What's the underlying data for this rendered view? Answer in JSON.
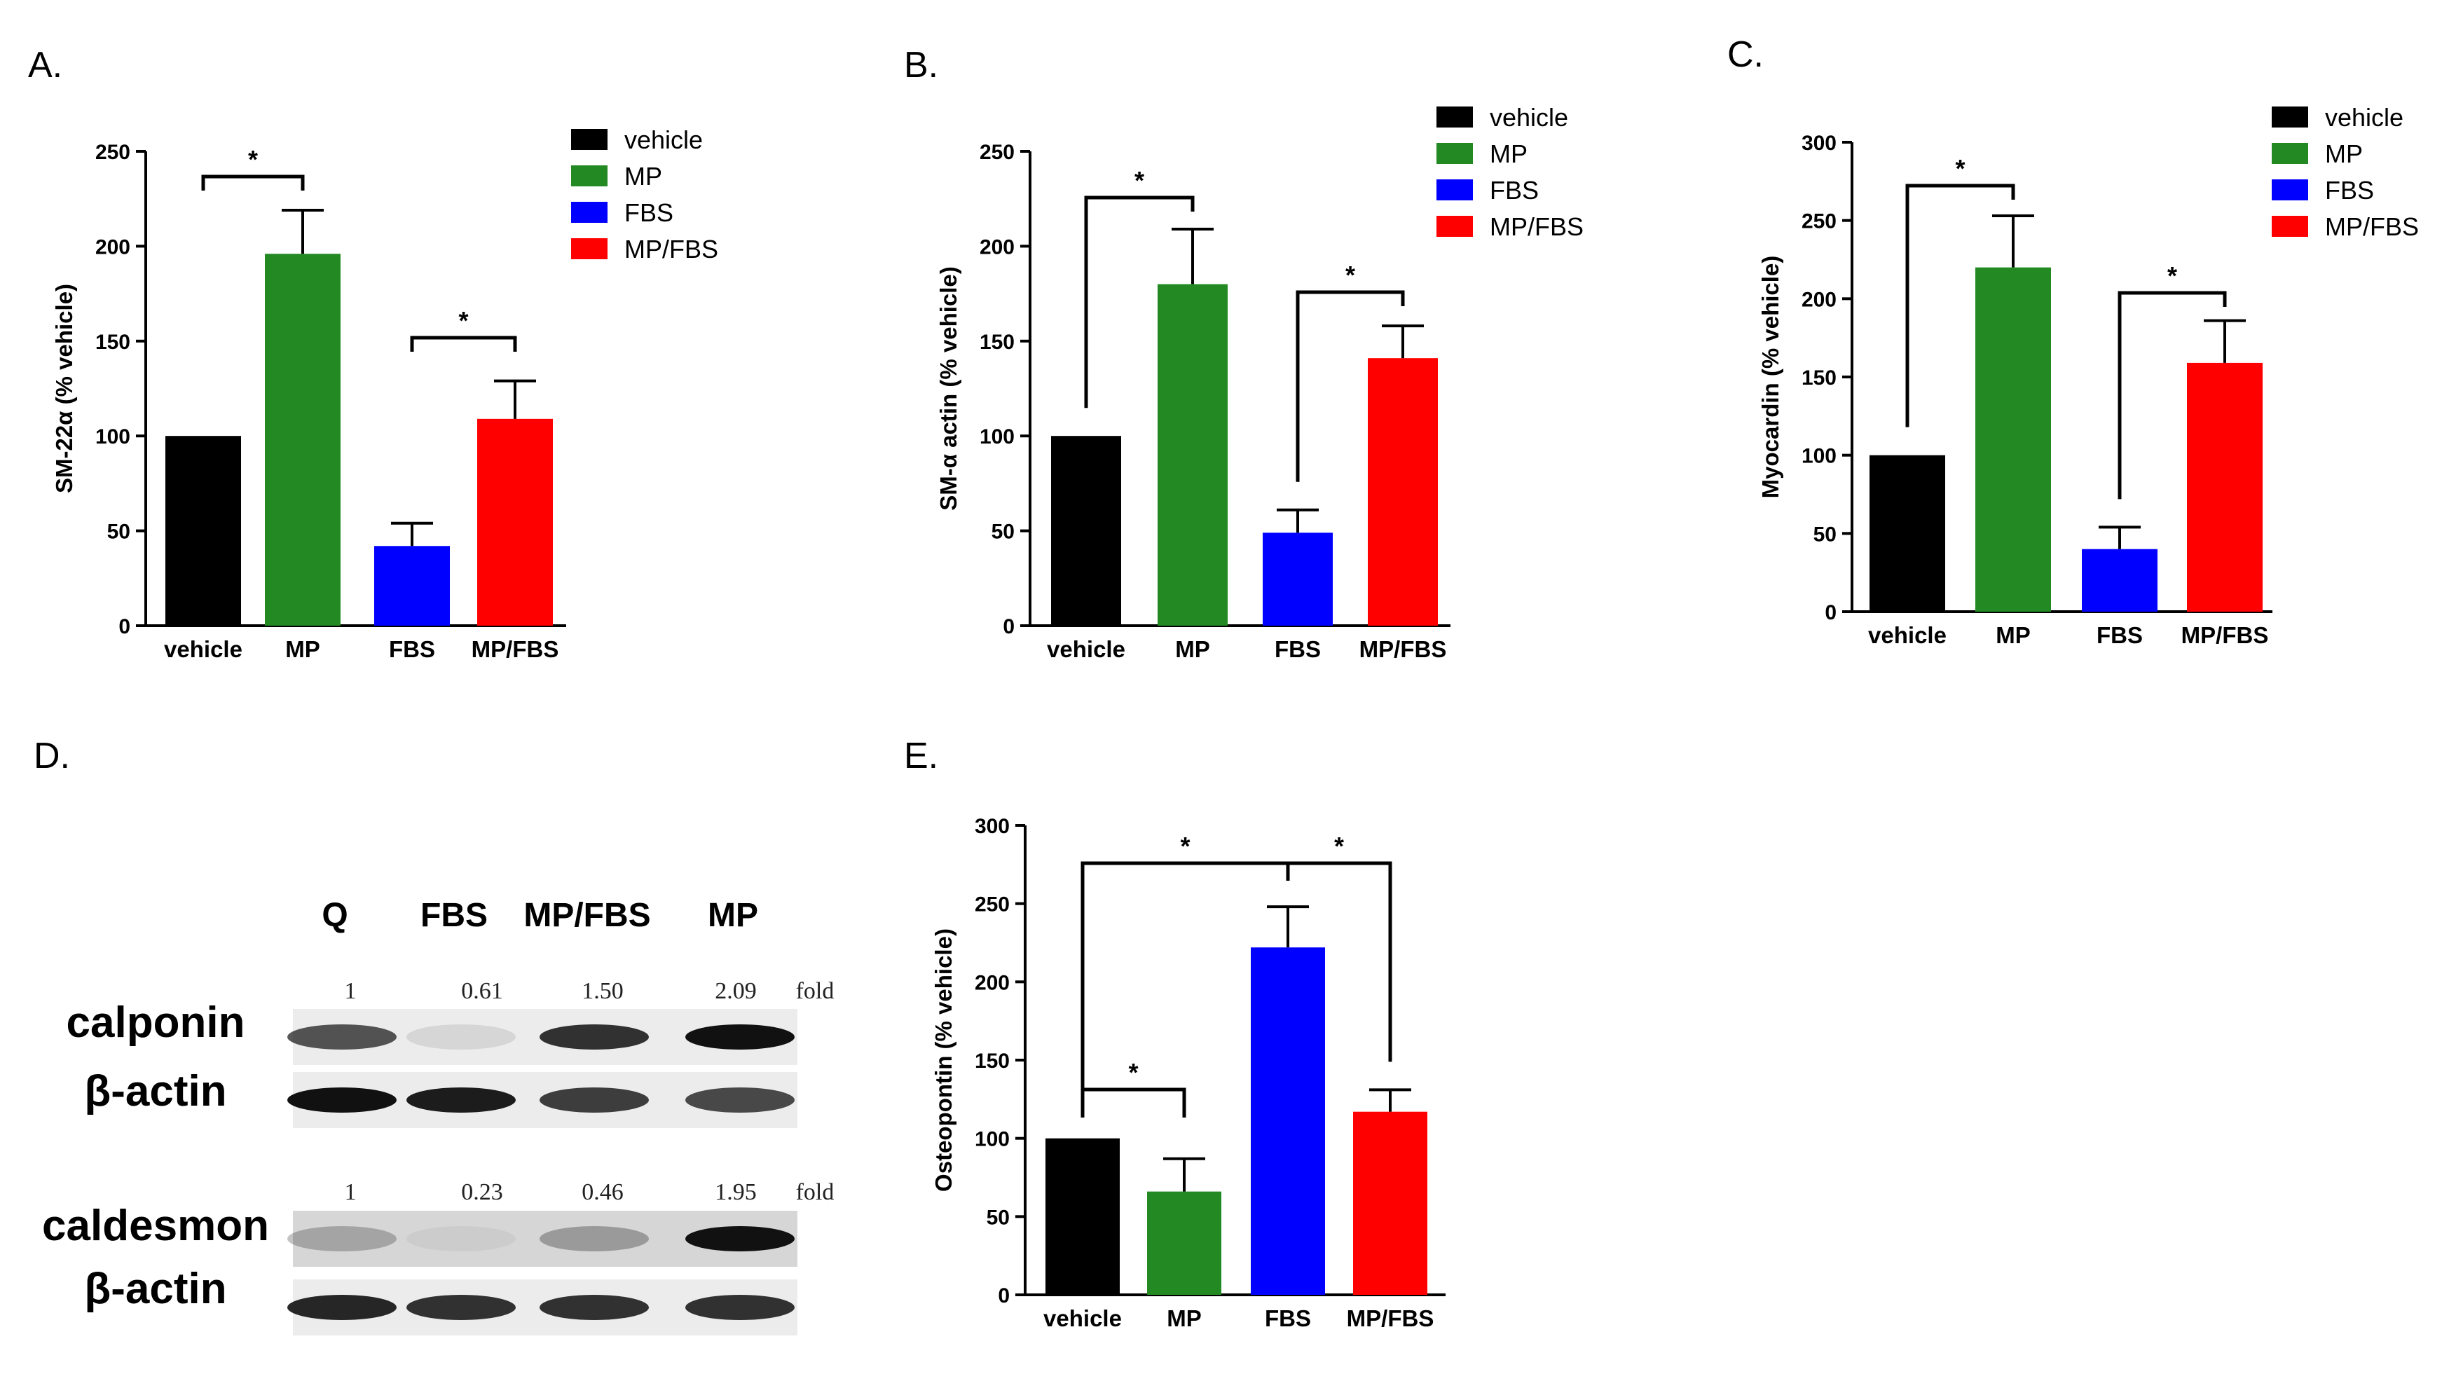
{
  "panels": [
    {
      "label": "A."
    },
    {
      "label": "B."
    },
    {
      "label": "C."
    },
    {
      "label": "D."
    },
    {
      "label": "E."
    }
  ],
  "chart_data": [
    {
      "panel": "A.",
      "type": "bar",
      "ylabel": "SM-22α (% vehicle)",
      "categories": [
        "vehicle",
        "MP",
        "FBS",
        "MP/FBS"
      ],
      "values": [
        100,
        196,
        42,
        109
      ],
      "errors": [
        0,
        23,
        12,
        20
      ],
      "colors": [
        "#000000",
        "#238a23",
        "#0000ff",
        "#ff0000"
      ],
      "ylim": [
        0,
        250
      ],
      "yticks": [
        0,
        50,
        100,
        150,
        200,
        250
      ],
      "legend": [
        "vehicle",
        "MP",
        "FBS",
        "MP/FBS"
      ],
      "significance": [
        {
          "from": 0,
          "to": 1,
          "label": "*"
        },
        {
          "from": 2,
          "to": 3,
          "label": "*"
        }
      ]
    },
    {
      "panel": "B.",
      "type": "bar",
      "ylabel": "SM-α actin (% vehicle)",
      "categories": [
        "vehicle",
        "MP",
        "FBS",
        "MP/FBS"
      ],
      "values": [
        100,
        180,
        49,
        141
      ],
      "errors": [
        0,
        29,
        12,
        17
      ],
      "colors": [
        "#000000",
        "#238a23",
        "#0000ff",
        "#ff0000"
      ],
      "ylim": [
        0,
        250
      ],
      "yticks": [
        0,
        50,
        100,
        150,
        200,
        250
      ],
      "legend": [
        "vehicle",
        "MP",
        "FBS",
        "MP/FBS"
      ],
      "significance": [
        {
          "from": 0,
          "to": 1,
          "label": "*"
        },
        {
          "from": 2,
          "to": 3,
          "label": "*"
        }
      ]
    },
    {
      "panel": "C.",
      "type": "bar",
      "ylabel": "Myocardin (% vehicle)",
      "categories": [
        "vehicle",
        "MP",
        "FBS",
        "MP/FBS"
      ],
      "values": [
        100,
        220,
        40,
        159
      ],
      "errors": [
        0,
        33,
        14,
        27
      ],
      "colors": [
        "#000000",
        "#238a23",
        "#0000ff",
        "#ff0000"
      ],
      "ylim": [
        0,
        300
      ],
      "yticks": [
        0,
        50,
        100,
        150,
        200,
        250,
        300
      ],
      "legend": [
        "vehicle",
        "MP",
        "FBS",
        "MP/FBS"
      ],
      "significance": [
        {
          "from": 0,
          "to": 1,
          "label": "*"
        },
        {
          "from": 2,
          "to": 3,
          "label": "*"
        }
      ]
    },
    {
      "panel": "E.",
      "type": "bar",
      "ylabel": "Osteopontin (% vehicle)",
      "categories": [
        "vehicle",
        "MP",
        "FBS",
        "MP/FBS"
      ],
      "values": [
        100,
        66,
        222,
        117
      ],
      "errors": [
        0,
        21,
        26,
        14
      ],
      "colors": [
        "#000000",
        "#238a23",
        "#0000ff",
        "#ff0000"
      ],
      "ylim": [
        0,
        300
      ],
      "yticks": [
        0,
        50,
        100,
        150,
        200,
        250,
        300
      ],
      "legend": [],
      "significance": [
        {
          "from": 0,
          "to": 2,
          "label": "*"
        },
        {
          "from": 2,
          "to": 3,
          "label": "*"
        },
        {
          "from": 0,
          "to": 1,
          "label": "*"
        }
      ]
    }
  ],
  "blot": {
    "lanes": [
      "Q",
      "FBS",
      "MP/FBS",
      "MP"
    ],
    "groups": [
      {
        "target": "calponin",
        "control": "β-actin",
        "folds": [
          "1",
          "0.61",
          "1.50",
          "2.09"
        ],
        "fold_unit": "fold",
        "target_intensity": [
          0.7,
          0.1,
          0.85,
          1.0
        ],
        "control_intensity": [
          1.0,
          0.95,
          0.8,
          0.75
        ]
      },
      {
        "target": "caldesmon",
        "control": "β-actin",
        "folds": [
          "1",
          "0.23",
          "0.46",
          "1.95"
        ],
        "fold_unit": "fold",
        "target_intensity": [
          0.25,
          0.05,
          0.3,
          1.0
        ],
        "control_intensity": [
          0.9,
          0.85,
          0.85,
          0.85
        ]
      }
    ]
  }
}
